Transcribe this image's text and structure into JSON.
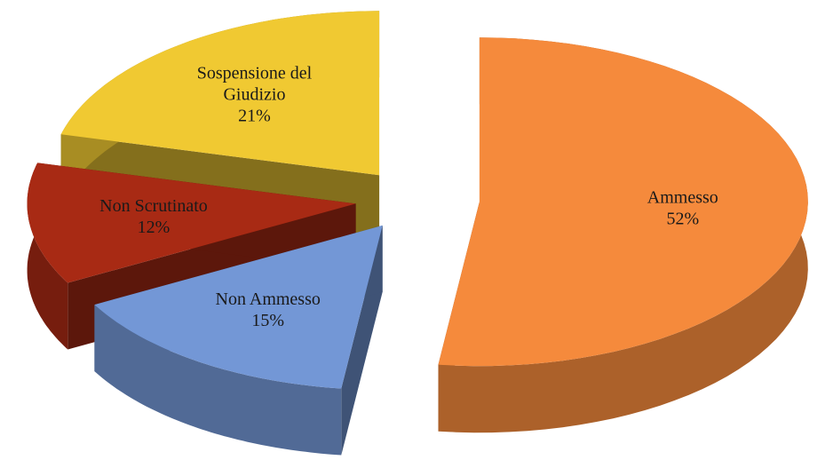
{
  "chart_data": {
    "type": "pie3d",
    "categories": [
      "Ammesso",
      "Non Ammesso",
      "Non Scrutinato",
      "Sospensione del Giudizio"
    ],
    "values": [
      52,
      15,
      12,
      21
    ],
    "value_labels": [
      "52%",
      "15%",
      "12%",
      "21%"
    ],
    "colors": [
      "#f58a3c",
      "#7397d6",
      "#a82a14",
      "#f0c932"
    ]
  }
}
